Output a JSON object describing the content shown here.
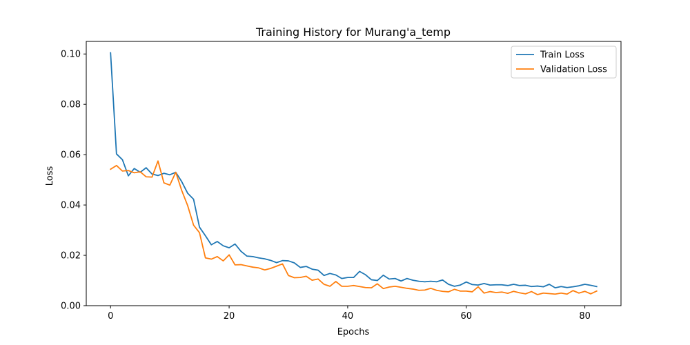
{
  "chart_data": {
    "type": "line",
    "title": "Training History for Murang'a_temp",
    "xlabel": "Epochs",
    "ylabel": "Loss",
    "xlim": [
      -4.1,
      86.1
    ],
    "ylim": [
      0.0,
      0.105
    ],
    "xticks": [
      0,
      20,
      40,
      60,
      80
    ],
    "xtick_labels": [
      "0",
      "20",
      "40",
      "60",
      "80"
    ],
    "yticks": [
      0.0,
      0.02,
      0.04,
      0.06,
      0.08,
      0.1
    ],
    "ytick_labels": [
      "0.00",
      "0.02",
      "0.04",
      "0.06",
      "0.08",
      "0.10"
    ],
    "grid": false,
    "legend_position": "top-right",
    "series": [
      {
        "name": "Train Loss",
        "color": "#1f77b4",
        "values": [
          0.1005,
          0.0603,
          0.058,
          0.0516,
          0.0545,
          0.053,
          0.0548,
          0.0523,
          0.0517,
          0.0526,
          0.052,
          0.053,
          0.0493,
          0.0447,
          0.0423,
          0.0312,
          0.0278,
          0.0242,
          0.0255,
          0.0238,
          0.023,
          0.0245,
          0.0216,
          0.0197,
          0.0195,
          0.019,
          0.0186,
          0.018,
          0.0171,
          0.0179,
          0.0178,
          0.017,
          0.0152,
          0.0156,
          0.0145,
          0.0141,
          0.012,
          0.0128,
          0.0122,
          0.0108,
          0.0112,
          0.0112,
          0.0136,
          0.0123,
          0.0103,
          0.01,
          0.0121,
          0.0106,
          0.0108,
          0.0098,
          0.0108,
          0.0101,
          0.0097,
          0.0095,
          0.0097,
          0.0095,
          0.0102,
          0.0085,
          0.0077,
          0.0082,
          0.0094,
          0.0084,
          0.0082,
          0.0088,
          0.0082,
          0.0083,
          0.0083,
          0.008,
          0.0085,
          0.008,
          0.0081,
          0.0076,
          0.0078,
          0.0075,
          0.0085,
          0.0071,
          0.0076,
          0.0072,
          0.0075,
          0.0079,
          0.0085,
          0.0081,
          0.0076
        ]
      },
      {
        "name": "Validation Loss",
        "color": "#ff7f0e",
        "values": [
          0.0542,
          0.0557,
          0.0535,
          0.0537,
          0.0528,
          0.0532,
          0.0512,
          0.0511,
          0.0575,
          0.0488,
          0.0479,
          0.053,
          0.0458,
          0.0398,
          0.032,
          0.029,
          0.019,
          0.0185,
          0.0195,
          0.0178,
          0.0202,
          0.0162,
          0.0163,
          0.0158,
          0.0153,
          0.015,
          0.0142,
          0.0148,
          0.0157,
          0.0166,
          0.012,
          0.0111,
          0.0112,
          0.0117,
          0.0101,
          0.0106,
          0.0085,
          0.0077,
          0.0096,
          0.0077,
          0.0077,
          0.008,
          0.0076,
          0.0072,
          0.0071,
          0.0087,
          0.0068,
          0.0074,
          0.0077,
          0.0073,
          0.0069,
          0.0066,
          0.0061,
          0.0062,
          0.0069,
          0.0061,
          0.0057,
          0.0055,
          0.0065,
          0.0058,
          0.0058,
          0.0055,
          0.0075,
          0.005,
          0.0056,
          0.0052,
          0.0054,
          0.0049,
          0.0057,
          0.0051,
          0.0047,
          0.0056,
          0.0044,
          0.005,
          0.0048,
          0.0046,
          0.005,
          0.0046,
          0.006,
          0.005,
          0.0057,
          0.0047,
          0.0058
        ]
      }
    ]
  }
}
